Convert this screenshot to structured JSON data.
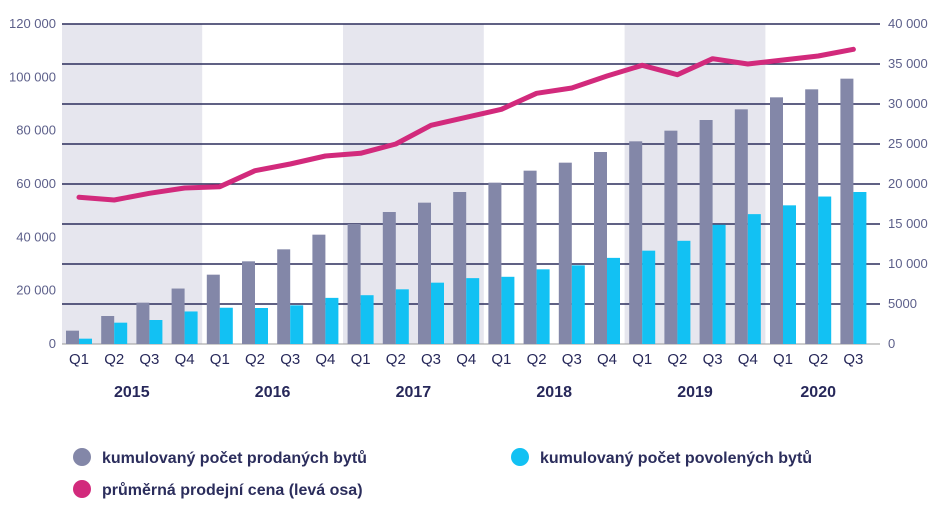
{
  "chart_data": {
    "type": "bar",
    "title": "",
    "quarters": [
      "Q1",
      "Q2",
      "Q3",
      "Q4",
      "Q1",
      "Q2",
      "Q3",
      "Q4",
      "Q1",
      "Q2",
      "Q3",
      "Q4",
      "Q1",
      "Q2",
      "Q3",
      "Q4",
      "Q1",
      "Q2",
      "Q3",
      "Q4",
      "Q1",
      "Q2",
      "Q3"
    ],
    "years": [
      {
        "label": "2015",
        "start": 0,
        "end": 3
      },
      {
        "label": "2016",
        "start": 4,
        "end": 7
      },
      {
        "label": "2017",
        "start": 8,
        "end": 11
      },
      {
        "label": "2018",
        "start": 12,
        "end": 15
      },
      {
        "label": "2019",
        "start": 16,
        "end": 19
      },
      {
        "label": "2020",
        "start": 20,
        "end": 22
      }
    ],
    "shaded_years": [
      0,
      2,
      4
    ],
    "left_axis": {
      "ylim": [
        0,
        120000
      ],
      "ticks": [
        0,
        20000,
        40000,
        60000,
        80000,
        100000,
        120000
      ],
      "tick_labels": [
        "0",
        "20 000",
        "40 000",
        "60 000",
        "80 000",
        "100 000",
        "120 000"
      ]
    },
    "right_axis": {
      "ylim": [
        0,
        40000
      ],
      "ticks": [
        0,
        5000,
        10000,
        15000,
        20000,
        25000,
        30000,
        35000,
        40000
      ],
      "tick_labels": [
        "0",
        "5000",
        "10 000",
        "15 000",
        "20 000",
        "25 000",
        "30 000",
        "35 000",
        "40 000"
      ]
    },
    "series": [
      {
        "name": "kumulovaný počet prodaných bytů",
        "type": "bar",
        "axis": "left",
        "color": "#8387a8",
        "values": [
          5000,
          10500,
          15500,
          20800,
          26000,
          31000,
          35500,
          41000,
          45000,
          49500,
          53000,
          57000,
          60500,
          65000,
          68000,
          72000,
          76000,
          80000,
          84000,
          88000,
          92500,
          95500,
          99500
        ]
      },
      {
        "name": "kumulovaný počet povolených bytů",
        "type": "bar",
        "axis": "left",
        "color": "#12c1f3",
        "values": [
          2000,
          8000,
          9000,
          12200,
          13600,
          13500,
          14500,
          17300,
          18300,
          20500,
          23000,
          24700,
          25200,
          28000,
          29500,
          32300,
          35000,
          38700,
          44700,
          48700,
          52000,
          55300,
          57000
        ]
      },
      {
        "name": "průměrná prodejní cena (levá osa)",
        "type": "line",
        "axis": "left",
        "color": "#d22a7c",
        "values": [
          55000,
          54000,
          56500,
          58500,
          59000,
          65000,
          67500,
          70500,
          71500,
          75000,
          82000,
          85000,
          88000,
          94000,
          96000,
          100500,
          104500,
          101000,
          107000,
          105000,
          106500,
          108000,
          110500
        ]
      }
    ],
    "legend": [
      {
        "label": "kumulovaný počet prodaných bytů",
        "color": "#8387a8"
      },
      {
        "label": "kumulovaný počet povolených bytů",
        "color": "#12c1f3"
      },
      {
        "label": "průměrná prodejní cena (levá osa)",
        "color": "#d22a7c"
      }
    ],
    "colors": {
      "shade": "#e6e6ee",
      "grid": "#2b2d5c",
      "baseline": "#999999"
    }
  }
}
